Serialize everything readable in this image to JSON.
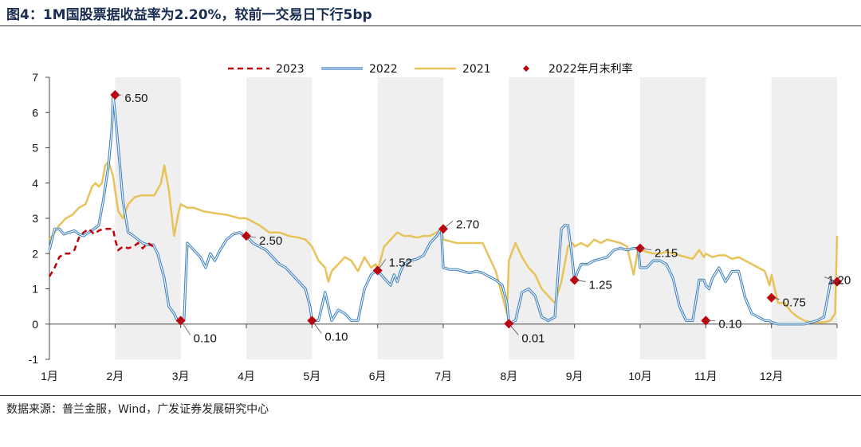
{
  "title": "图4：1M国股票据收益率为2.20%，较前一交易日下行5bp",
  "source": "数据来源：普兰金服，Wind，广发证券发展研究中心",
  "chart_data": {
    "type": "line",
    "ylim": [
      -1,
      7
    ],
    "yticks": [
      -1,
      0,
      1,
      2,
      3,
      4,
      5,
      6,
      7
    ],
    "xlim": [
      0,
      12
    ],
    "months": [
      "1月",
      "2月",
      "3月",
      "4月",
      "5月",
      "6月",
      "7月",
      "8月",
      "9月",
      "10月",
      "11月",
      "12月"
    ],
    "shaded_months": [
      1,
      3,
      5,
      7,
      9,
      11
    ],
    "colors": {
      "s2023": "#c0000a",
      "s2022": "#3a7fc0",
      "s2021": "#e8c35a",
      "marker": "#c0000a",
      "shade": "#efefef"
    },
    "series": [
      {
        "name": "2023",
        "style": "dashed",
        "x": [
          0.0,
          0.08,
          0.15,
          0.22,
          0.3,
          0.38,
          0.45,
          0.52,
          0.6,
          0.68,
          0.75,
          0.82,
          0.9,
          0.97,
          1.0,
          1.05,
          1.12,
          1.2,
          1.28,
          1.35,
          1.42,
          1.5,
          1.58
        ],
        "y": [
          1.35,
          1.6,
          1.9,
          2.0,
          2.0,
          2.1,
          2.45,
          2.6,
          2.7,
          2.55,
          2.65,
          2.7,
          2.7,
          2.7,
          2.4,
          2.1,
          2.2,
          2.15,
          2.2,
          2.3,
          2.15,
          2.3,
          2.2
        ]
      },
      {
        "name": "2022",
        "style": "double",
        "x": [
          0.0,
          0.08,
          0.15,
          0.22,
          0.3,
          0.38,
          0.45,
          0.52,
          0.6,
          0.68,
          0.75,
          0.82,
          0.9,
          0.95,
          0.97,
          1.0,
          1.05,
          1.12,
          1.2,
          1.28,
          1.35,
          1.42,
          1.5,
          1.58,
          1.65,
          1.75,
          1.82,
          1.9,
          1.95,
          2.0,
          2.05,
          2.1,
          2.2,
          2.3,
          2.38,
          2.45,
          2.52,
          2.6,
          2.7,
          2.8,
          2.9,
          2.97,
          3.0,
          3.1,
          3.2,
          3.3,
          3.5,
          3.6,
          3.7,
          3.8,
          3.9,
          3.97,
          4.0,
          4.1,
          4.2,
          4.3,
          4.4,
          4.5,
          4.6,
          4.7,
          4.8,
          4.9,
          4.97,
          5.0,
          5.1,
          5.2,
          5.25,
          5.3,
          5.35,
          5.4,
          5.5,
          5.6,
          5.7,
          5.8,
          5.9,
          5.97,
          6.0,
          6.1,
          6.2,
          6.3,
          6.4,
          6.5,
          6.6,
          6.7,
          6.8,
          6.9,
          6.97,
          7.0,
          7.1,
          7.2,
          7.3,
          7.4,
          7.5,
          7.6,
          7.7,
          7.8,
          7.85,
          7.9,
          7.95,
          8.0,
          8.05,
          8.1,
          8.2,
          8.3,
          8.4,
          8.5,
          8.6,
          8.7,
          8.8,
          8.9,
          8.97,
          9.0,
          9.1,
          9.2,
          9.3,
          9.4,
          9.5,
          9.6,
          9.7,
          9.8,
          9.9,
          9.97,
          10.0,
          10.05,
          10.1,
          10.2,
          10.3,
          10.4,
          10.5,
          10.6,
          10.7,
          10.8,
          10.9,
          10.97,
          11.0,
          11.1,
          11.2,
          11.3,
          11.4,
          11.5,
          11.6,
          11.7,
          11.8,
          11.9,
          11.97
        ],
        "y": [
          2.1,
          2.7,
          2.7,
          2.55,
          2.6,
          2.65,
          2.55,
          2.5,
          2.6,
          2.7,
          2.8,
          3.5,
          4.5,
          5.5,
          6.5,
          6.0,
          5.0,
          3.5,
          2.6,
          2.5,
          2.4,
          2.3,
          2.25,
          2.25,
          2.0,
          1.3,
          0.5,
          0.3,
          0.1,
          0.1,
          0.1,
          2.3,
          2.1,
          1.9,
          1.6,
          2.0,
          1.8,
          2.1,
          2.4,
          2.55,
          2.6,
          2.5,
          2.5,
          2.3,
          2.2,
          2.1,
          1.7,
          1.6,
          1.4,
          1.2,
          1.0,
          0.5,
          0.1,
          0.1,
          0.9,
          0.1,
          0.4,
          0.3,
          0.1,
          0.1,
          1.0,
          1.4,
          1.5,
          1.52,
          1.3,
          1.1,
          1.4,
          1.2,
          1.5,
          1.7,
          1.8,
          1.85,
          1.95,
          2.3,
          2.5,
          2.7,
          1.6,
          1.55,
          1.55,
          1.5,
          1.45,
          1.5,
          1.45,
          1.35,
          1.25,
          1.1,
          0.6,
          0.01,
          0.1,
          0.9,
          1.0,
          0.8,
          0.2,
          0.1,
          0.2,
          2.7,
          2.8,
          2.8,
          2.1,
          1.25,
          1.5,
          1.7,
          1.7,
          1.8,
          1.85,
          1.9,
          2.1,
          2.15,
          2.1,
          2.15,
          2.15,
          1.6,
          1.6,
          1.8,
          1.8,
          1.7,
          1.3,
          0.5,
          0.1,
          0.1,
          1.25,
          1.25,
          1.1,
          1.0,
          1.3,
          1.6,
          1.2,
          1.5,
          1.5,
          0.75,
          0.3,
          0.2,
          0.1,
          0.1,
          0.05,
          0.0,
          0.0,
          0.0,
          0.0,
          0.0,
          0.05,
          0.1,
          0.2,
          1.2,
          1.2
        ]
      },
      {
        "name": "2021",
        "style": "solid",
        "x": [
          0.0,
          0.08,
          0.15,
          0.25,
          0.35,
          0.45,
          0.55,
          0.65,
          0.7,
          0.75,
          0.8,
          0.85,
          0.9,
          0.97,
          1.0,
          1.05,
          1.12,
          1.2,
          1.3,
          1.4,
          1.5,
          1.6,
          1.7,
          1.75,
          1.82,
          1.9,
          1.97,
          2.0,
          2.1,
          2.2,
          2.35,
          2.5,
          2.7,
          2.9,
          3.0,
          3.1,
          3.2,
          3.35,
          3.5,
          3.65,
          3.8,
          3.9,
          4.0,
          4.1,
          4.2,
          4.25,
          4.3,
          4.4,
          4.5,
          4.6,
          4.7,
          4.8,
          4.9,
          4.97,
          5.0,
          5.1,
          5.2,
          5.3,
          5.4,
          5.5,
          5.6,
          5.7,
          5.8,
          5.9,
          5.97,
          6.0,
          6.2,
          6.4,
          6.6,
          6.8,
          6.97,
          7.0,
          7.1,
          7.2,
          7.3,
          7.4,
          7.5,
          7.6,
          7.7,
          7.8,
          7.9,
          7.97,
          8.0,
          8.1,
          8.2,
          8.3,
          8.4,
          8.5,
          8.6,
          8.7,
          8.8,
          8.9,
          8.97,
          9.0,
          9.1,
          9.2,
          9.3,
          9.4,
          9.5,
          9.6,
          9.7,
          9.8,
          9.9,
          9.97,
          10.0,
          10.1,
          10.2,
          10.3,
          10.4,
          10.5,
          10.6,
          10.7,
          10.8,
          10.9,
          10.97,
          11.0,
          11.1,
          11.2,
          11.3,
          11.4,
          11.5,
          11.6,
          11.7,
          11.8,
          11.9,
          11.97,
          12.0
        ],
        "y": [
          2.4,
          2.6,
          2.8,
          3.0,
          3.1,
          3.3,
          3.4,
          3.9,
          4.0,
          3.9,
          4.0,
          4.5,
          4.6,
          4.2,
          3.8,
          3.2,
          3.0,
          3.4,
          3.6,
          3.65,
          3.65,
          3.65,
          4.0,
          4.5,
          3.8,
          2.5,
          3.2,
          3.4,
          3.3,
          3.3,
          3.2,
          3.15,
          3.1,
          3.0,
          3.0,
          2.9,
          2.8,
          2.6,
          2.6,
          2.5,
          2.45,
          2.4,
          2.2,
          1.8,
          1.6,
          1.2,
          1.5,
          1.7,
          1.9,
          1.8,
          1.5,
          1.9,
          1.6,
          1.7,
          1.52,
          2.2,
          2.4,
          2.6,
          2.5,
          2.5,
          2.45,
          2.5,
          2.5,
          2.6,
          2.7,
          2.4,
          2.3,
          2.3,
          2.3,
          1.5,
          0.3,
          1.8,
          2.3,
          1.9,
          1.6,
          1.4,
          1.0,
          0.8,
          0.6,
          1.2,
          2.2,
          2.3,
          2.2,
          2.3,
          2.2,
          2.4,
          2.3,
          2.4,
          2.35,
          2.3,
          2.2,
          1.4,
          2.15,
          2.1,
          2.05,
          2.0,
          2.0,
          2.05,
          2.0,
          1.95,
          1.9,
          1.85,
          2.1,
          1.9,
          2.0,
          1.9,
          1.95,
          1.95,
          1.85,
          1.9,
          1.8,
          1.7,
          1.6,
          1.5,
          1.1,
          1.4,
          0.6,
          0.6,
          0.35,
          0.2,
          0.1,
          0.05,
          0.05,
          0.05,
          0.1,
          0.3,
          2.5
        ]
      }
    ],
    "markers": {
      "name": "2022年月末利率",
      "x": [
        1,
        2,
        3,
        4,
        5,
        6,
        7,
        8,
        9,
        10,
        11,
        12
      ],
      "y": [
        6.5,
        0.1,
        2.5,
        0.1,
        1.52,
        2.7,
        0.01,
        1.25,
        2.15,
        0.1,
        0.75,
        1.2
      ],
      "labels": [
        "6.50",
        "0.10",
        "2.50",
        "0.10",
        "1.52",
        "2.70",
        "0.01",
        "1.25",
        "2.15",
        "0.10",
        "0.75",
        "1.20"
      ]
    }
  }
}
